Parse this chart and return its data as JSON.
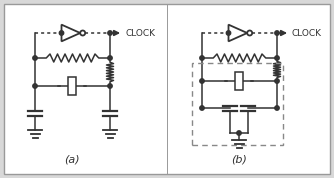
{
  "bg_color": "#ffffff",
  "line_color": "#333333",
  "dashed_color": "#888888",
  "label_a": "(a)",
  "label_b": "(b)",
  "clock_text": "CLOCK",
  "fig_bg": "#d8d8d8",
  "border_color": "#999999"
}
